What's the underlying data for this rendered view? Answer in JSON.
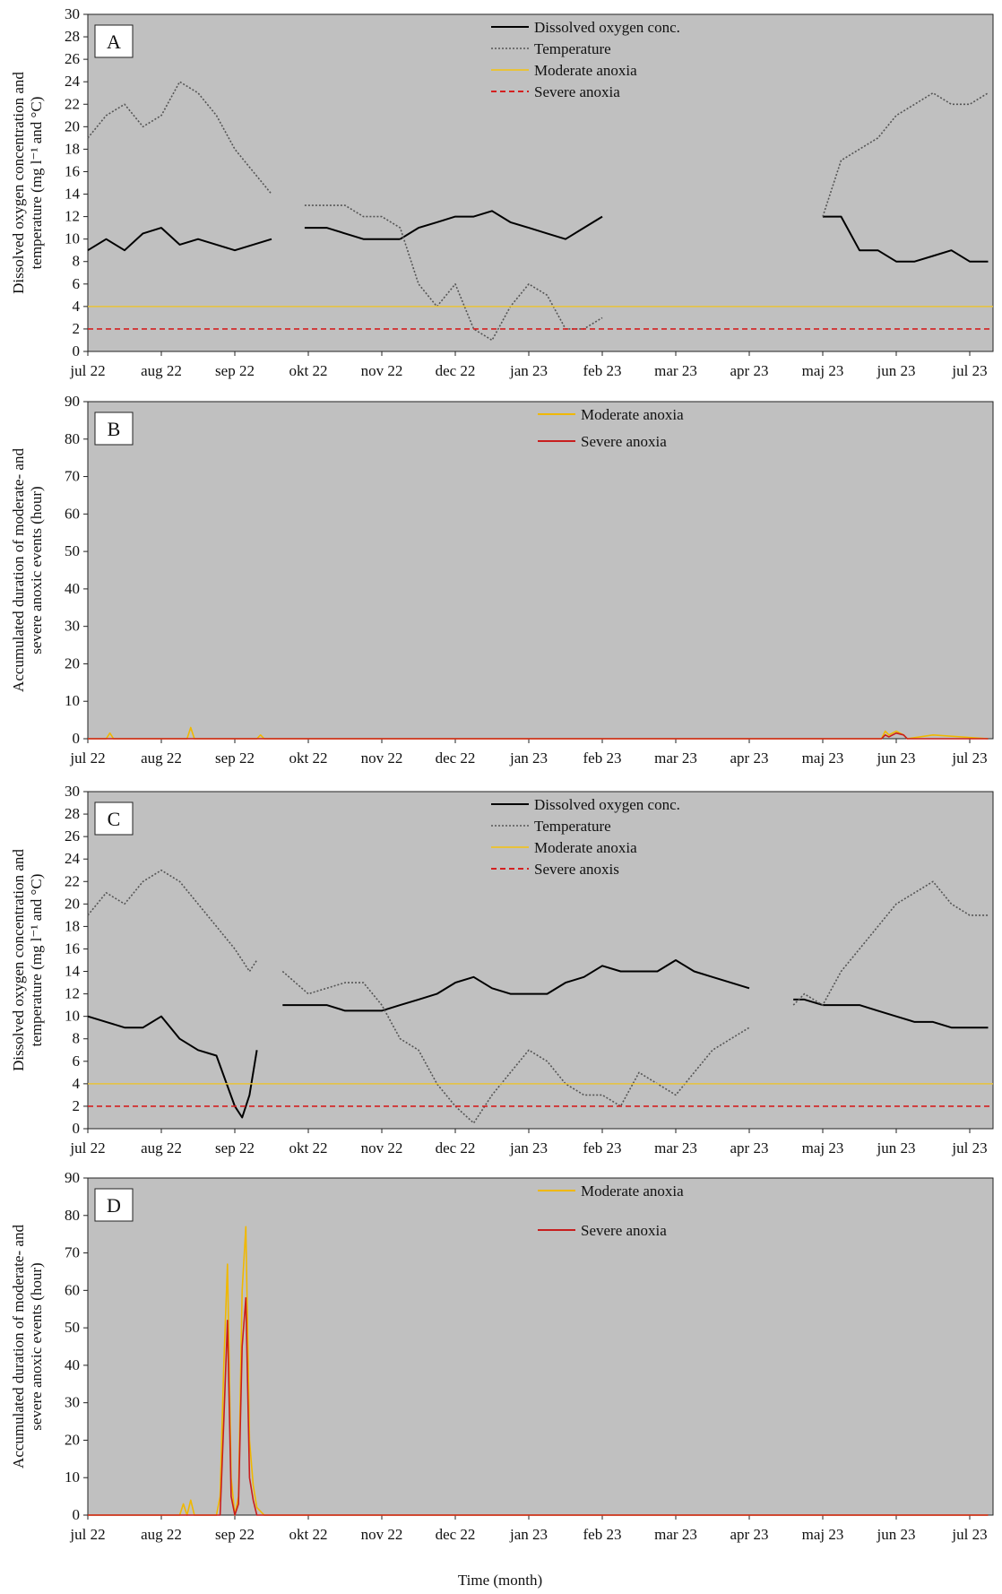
{
  "figure": {
    "xlabel": "Time (month)"
  },
  "chart_data": [
    {
      "panel": "A",
      "type": "line",
      "ylabel_line1": "Dissolved oxygen concentration and",
      "ylabel_line2": "temperature (mg l⁻¹ and °C)",
      "ylim": [
        0,
        30
      ],
      "yticks": [
        0,
        2,
        4,
        6,
        8,
        10,
        12,
        14,
        16,
        18,
        20,
        22,
        24,
        26,
        28,
        30
      ],
      "categories": [
        "jul 22",
        "aug 22",
        "sep 22",
        "okt 22",
        "nov 22",
        "dec 22",
        "jan 23",
        "feb 23",
        "mar 23",
        "apr 23",
        "maj 23",
        "jun 23",
        "jul 23"
      ],
      "grid": false,
      "legend": "top-center",
      "series": [
        {
          "name": "Dissolved oxygen conc.",
          "color": "#000000",
          "style": "solid",
          "segments": [
            {
              "x": [
                0.0,
                0.25,
                0.5,
                0.75,
                1.0,
                1.25,
                1.5,
                1.75,
                2.0,
                2.25,
                2.5
              ],
              "y": [
                9,
                10,
                9,
                10.5,
                11,
                9.5,
                10,
                9.5,
                9,
                9.5,
                10
              ]
            },
            {
              "x": [
                2.95,
                3.25,
                3.5,
                3.75,
                4.0,
                4.25
              ],
              "y": [
                11,
                11,
                10.5,
                10,
                10,
                10
              ]
            },
            {
              "x": [
                4.25,
                4.5,
                4.75,
                5.0,
                5.25,
                5.5,
                5.75,
                6.0,
                6.25,
                6.5,
                6.75,
                7.0
              ],
              "y": [
                10,
                11,
                11.5,
                12,
                12,
                12.5,
                11.5,
                11,
                10.5,
                10,
                11,
                12
              ]
            },
            {
              "x": [
                10.0,
                10.25,
                10.5,
                10.75,
                11.0,
                11.25,
                11.5,
                11.75,
                12.0,
                12.25
              ],
              "y": [
                12,
                12,
                9,
                9,
                8,
                8,
                8.5,
                9,
                8,
                8
              ]
            }
          ]
        },
        {
          "name": "Temperature",
          "color": "#555555",
          "style": "dotted",
          "segments": [
            {
              "x": [
                0.0,
                0.25,
                0.5,
                0.75,
                1.0,
                1.25,
                1.5,
                1.75,
                2.0,
                2.25,
                2.5
              ],
              "y": [
                19,
                21,
                22,
                20,
                21,
                24,
                23,
                21,
                18,
                16,
                14
              ]
            },
            {
              "x": [
                2.95,
                3.25,
                3.5,
                3.75,
                4.0,
                4.25,
                4.5,
                4.75,
                5.0,
                5.25,
                5.5,
                5.75,
                6.0,
                6.25,
                6.5,
                6.75,
                7.0
              ],
              "y": [
                13,
                13,
                13,
                12,
                12,
                11,
                6,
                4,
                6,
                2,
                1,
                4,
                6,
                5,
                2,
                2,
                3
              ]
            },
            {
              "x": [
                10.0,
                10.25,
                10.5,
                10.75,
                11.0,
                11.25,
                11.5,
                11.75,
                12.0,
                12.25
              ],
              "y": [
                12,
                17,
                18,
                19,
                21,
                22,
                23,
                22,
                22,
                23
              ]
            }
          ]
        },
        {
          "name": "Moderate anoxia",
          "color": "#e8c23a",
          "style": "solid",
          "constant": 4
        },
        {
          "name": "Severe anoxia",
          "color": "#d42020",
          "style": "dashed",
          "constant": 2
        }
      ]
    },
    {
      "panel": "B",
      "type": "line",
      "ylabel_line1": "Accumulated duration of moderate- and",
      "ylabel_line2": "severe anoxic events (hour)",
      "ylim": [
        0,
        90
      ],
      "yticks": [
        0,
        10,
        20,
        30,
        40,
        50,
        60,
        70,
        80,
        90
      ],
      "categories": [
        "jul 22",
        "aug 22",
        "sep 22",
        "okt 22",
        "nov 22",
        "dec 22",
        "jan 23",
        "feb 23",
        "mar 23",
        "apr 23",
        "maj 23",
        "jun 23",
        "jul 23"
      ],
      "grid": false,
      "legend": "top-center",
      "series": [
        {
          "name": "Moderate anoxia",
          "color": "#f0b800",
          "x": [
            0.0,
            0.25,
            0.3,
            0.35,
            1.0,
            1.35,
            1.4,
            1.45,
            2.0,
            2.3,
            2.35,
            2.4,
            3.0,
            10.0,
            10.8,
            10.85,
            10.9,
            11.0,
            11.1,
            11.15,
            11.5,
            12.25
          ],
          "y": [
            0,
            0,
            1.5,
            0,
            0,
            0,
            3,
            0,
            0,
            0,
            1,
            0,
            0,
            0,
            0,
            2,
            1,
            2,
            1,
            0,
            1,
            0
          ]
        },
        {
          "name": "Severe anoxia",
          "color": "#c81e1e",
          "x": [
            0.0,
            10.8,
            10.85,
            10.9,
            11.0,
            11.1,
            11.15,
            12.25
          ],
          "y": [
            0,
            0,
            1,
            0.5,
            1.5,
            1,
            0,
            0
          ]
        }
      ]
    },
    {
      "panel": "C",
      "type": "line",
      "ylabel_line1": "Dissolved oxygen concentration and",
      "ylabel_line2": "temperature (mg l⁻¹ and °C)",
      "ylim": [
        0,
        30
      ],
      "yticks": [
        0,
        2,
        4,
        6,
        8,
        10,
        12,
        14,
        16,
        18,
        20,
        22,
        24,
        26,
        28,
        30
      ],
      "categories": [
        "jul 22",
        "aug 22",
        "sep 22",
        "okt 22",
        "nov 22",
        "dec 22",
        "jan 23",
        "feb 23",
        "mar 23",
        "apr 23",
        "maj 23",
        "jun 23",
        "jul 23"
      ],
      "grid": false,
      "legend": "top-center",
      "series": [
        {
          "name": "Dissolved oxygen conc.",
          "color": "#000000",
          "style": "solid",
          "segments": [
            {
              "x": [
                0.0,
                0.25,
                0.5,
                0.75,
                1.0,
                1.25,
                1.5,
                1.75,
                2.0,
                2.1,
                2.2,
                2.3
              ],
              "y": [
                10,
                9.5,
                9,
                9,
                10,
                8,
                7,
                6.5,
                2,
                1,
                3,
                7
              ]
            },
            {
              "x": [
                2.65,
                3.0,
                3.25,
                3.5,
                3.75,
                4.0,
                4.25,
                4.5,
                4.75,
                5.0,
                5.25,
                5.5,
                5.75,
                6.0,
                6.25,
                6.5,
                6.75,
                7.0,
                7.25,
                7.5,
                7.75,
                8.0,
                8.25,
                8.5,
                8.75,
                9.0
              ],
              "y": [
                11,
                11,
                11,
                10.5,
                10.5,
                10.5,
                11,
                11.5,
                12,
                13,
                13.5,
                12.5,
                12,
                12,
                12,
                13,
                13.5,
                14.5,
                14,
                14,
                14,
                15,
                14,
                13.5,
                13,
                12.5
              ]
            },
            {
              "x": [
                9.6,
                9.75,
                10.0,
                10.25,
                10.5,
                10.75,
                11.0,
                11.25,
                11.5,
                11.75,
                12.0,
                12.25
              ],
              "y": [
                11.5,
                11.5,
                11,
                11,
                11,
                10.5,
                10,
                9.5,
                9.5,
                9,
                9,
                9
              ]
            }
          ]
        },
        {
          "name": "Temperature",
          "color": "#555555",
          "style": "dotted",
          "segments": [
            {
              "x": [
                0.0,
                0.25,
                0.5,
                0.75,
                1.0,
                1.25,
                1.5,
                1.75,
                2.0,
                2.2,
                2.3
              ],
              "y": [
                19,
                21,
                20,
                22,
                23,
                22,
                20,
                18,
                16,
                14,
                15
              ]
            },
            {
              "x": [
                2.65,
                3.0,
                3.25,
                3.5,
                3.75,
                4.0,
                4.25,
                4.5,
                4.75,
                5.0,
                5.25,
                5.5,
                5.75,
                6.0,
                6.25,
                6.5,
                6.75,
                7.0,
                7.25,
                7.5,
                7.75,
                8.0,
                8.25,
                8.5,
                8.75,
                9.0
              ],
              "y": [
                14,
                12,
                12.5,
                13,
                13,
                11,
                8,
                7,
                4,
                2,
                0.5,
                3,
                5,
                7,
                6,
                4,
                3,
                3,
                2,
                5,
                4,
                3,
                5,
                7,
                8,
                9
              ]
            },
            {
              "x": [
                9.6,
                9.75,
                10.0,
                10.25,
                10.5,
                10.75,
                11.0,
                11.25,
                11.5,
                11.75,
                12.0,
                12.25
              ],
              "y": [
                11,
                12,
                11,
                14,
                16,
                18,
                20,
                21,
                22,
                20,
                19,
                19
              ]
            }
          ]
        },
        {
          "name": "Moderate anoxia",
          "color": "#e8c23a",
          "style": "solid",
          "constant": 4
        },
        {
          "name": "Severe anoxis",
          "color": "#d42020",
          "style": "dashed",
          "constant": 2
        }
      ]
    },
    {
      "panel": "D",
      "type": "line",
      "ylabel_line1": "Accumulated duration of moderate- and",
      "ylabel_line2": "severe anoxic events (hour)",
      "ylim": [
        0,
        90
      ],
      "yticks": [
        0,
        10,
        20,
        30,
        40,
        50,
        60,
        70,
        80,
        90
      ],
      "categories": [
        "jul 22",
        "aug 22",
        "sep 22",
        "okt 22",
        "nov 22",
        "dec 22",
        "jan 23",
        "feb 23",
        "mar 23",
        "apr 23",
        "maj 23",
        "jun 23",
        "jul 23"
      ],
      "grid": false,
      "legend": "top-center",
      "series": [
        {
          "name": "Moderate anoxia",
          "color": "#f0b800",
          "x": [
            0.0,
            1.25,
            1.3,
            1.35,
            1.4,
            1.45,
            1.75,
            1.8,
            1.85,
            1.9,
            1.95,
            2.0,
            2.05,
            2.1,
            2.15,
            2.2,
            2.25,
            2.3,
            2.4,
            12.25
          ],
          "y": [
            0,
            0,
            3,
            0,
            4,
            0,
            0,
            5,
            40,
            67,
            10,
            0,
            5,
            60,
            77,
            20,
            8,
            2,
            0,
            0
          ]
        },
        {
          "name": "Severe anoxia",
          "color": "#c81e1e",
          "x": [
            0.0,
            1.8,
            1.85,
            1.9,
            1.95,
            2.0,
            2.05,
            2.1,
            2.15,
            2.2,
            2.25,
            2.3,
            12.25
          ],
          "y": [
            0,
            0,
            25,
            52,
            5,
            0,
            3,
            45,
            58,
            10,
            4,
            0,
            0
          ]
        }
      ]
    }
  ]
}
